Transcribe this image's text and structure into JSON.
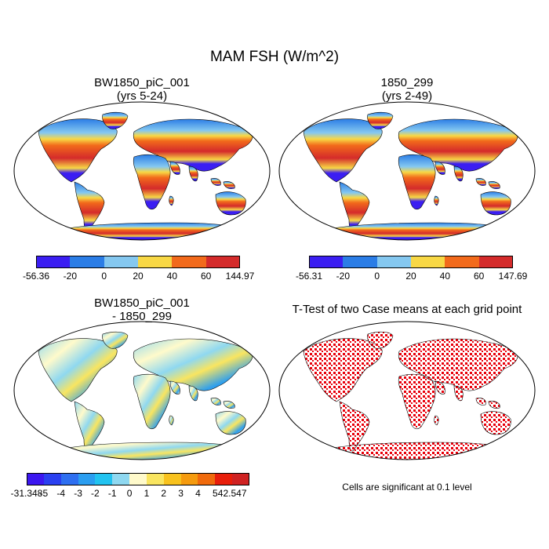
{
  "title": "MAM FSH (W/m^2)",
  "panels": [
    {
      "title_line1": "BW1850_piC_001",
      "title_line2": "(yrs 5-24)",
      "colorbar": {
        "colors": [
          "#3b1ef2",
          "#2b7de6",
          "#85c8f0",
          "#f8d845",
          "#f26a1b",
          "#d42b2b"
        ],
        "labels": [
          "-56.36",
          "-20",
          "0",
          "20",
          "40",
          "60",
          "144.97"
        ]
      }
    },
    {
      "title_line1": "1850_299",
      "title_line2": "(yrs 2-49)",
      "colorbar": {
        "colors": [
          "#3b1ef2",
          "#2b7de6",
          "#85c8f0",
          "#f8d845",
          "#f26a1b",
          "#d42b2b"
        ],
        "labels": [
          "-56.31",
          "-20",
          "0",
          "20",
          "40",
          "60",
          "147.69"
        ]
      }
    },
    {
      "title_line1": "BW1850_piC_001",
      "title_line2": "- 1850_299",
      "colorbar": {
        "colors": [
          "#3c17f0",
          "#2a40f0",
          "#2e6ff0",
          "#2b9ef0",
          "#22c3f0",
          "#8fd8f0",
          "#fffacb",
          "#f9e560",
          "#f8c21e",
          "#f59b0f",
          "#f06a0c",
          "#e81e0b",
          "#cf2222"
        ],
        "labels": [
          "-31.348",
          "-5",
          "-4",
          "-3",
          "-2",
          "-1",
          "0",
          "1",
          "2",
          "3",
          "4",
          "5",
          "42.547"
        ]
      }
    },
    {
      "title_line1": "T-Test of two Case means at each grid point",
      "note": "Cells are significant at 0.1 level"
    }
  ],
  "colors": {
    "land_outline": "#000000",
    "significant": "#e8000b",
    "ocean": "#ffffff"
  }
}
